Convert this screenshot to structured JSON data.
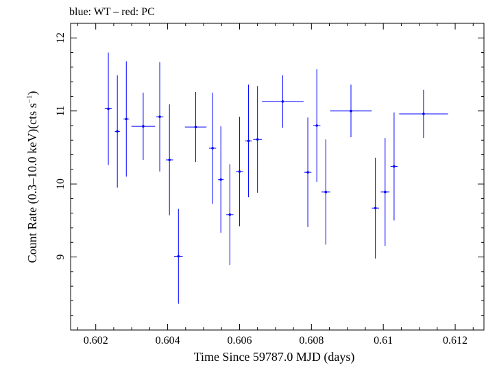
{
  "chart_data": {
    "type": "scatter",
    "title": "blue: WT – red: PC",
    "xlabel": "Time Since 59787.0 MJD (days)",
    "ylabel_main": "Count Rate (0.3–10.0 keV)(cts s",
    "ylabel_sup": "−1",
    "ylabel_end": ")",
    "xlim": [
      0.6013,
      0.6128
    ],
    "ylim": [
      8.0,
      12.2
    ],
    "xticks": [
      0.602,
      0.604,
      0.606,
      0.608,
      0.61,
      0.612
    ],
    "xtick_labels": [
      "0.602",
      "0.604",
      "0.606",
      "0.608",
      "0.61",
      "0.612"
    ],
    "yticks": [
      9,
      10,
      11,
      12
    ],
    "ytick_labels": [
      "9",
      "10",
      "11",
      "12"
    ],
    "series": [
      {
        "color": "#0000ff",
        "points": [
          {
            "x": 0.60235,
            "y": 11.03,
            "xerr": 0.0001,
            "yerr": 0.77
          },
          {
            "x": 0.6026,
            "y": 10.72,
            "xerr": 7e-05,
            "yerr": 0.77
          },
          {
            "x": 0.60285,
            "y": 10.89,
            "xerr": 8e-05,
            "yerr": 0.79
          },
          {
            "x": 0.60332,
            "y": 10.79,
            "xerr": 0.00033,
            "yerr": 0.46
          },
          {
            "x": 0.60378,
            "y": 10.92,
            "xerr": 0.0001,
            "yerr": 0.75
          },
          {
            "x": 0.60405,
            "y": 10.33,
            "xerr": 0.0001,
            "yerr": 0.76
          },
          {
            "x": 0.6043,
            "y": 9.01,
            "xerr": 0.00012,
            "yerr": 0.65
          },
          {
            "x": 0.60478,
            "y": 10.78,
            "xerr": 0.0003,
            "yerr": 0.48
          },
          {
            "x": 0.60525,
            "y": 10.49,
            "xerr": 0.0001,
            "yerr": 0.76
          },
          {
            "x": 0.60548,
            "y": 10.06,
            "xerr": 8e-05,
            "yerr": 0.73
          },
          {
            "x": 0.60573,
            "y": 9.58,
            "xerr": 0.0001,
            "yerr": 0.69
          },
          {
            "x": 0.606,
            "y": 10.17,
            "xerr": 0.0001,
            "yerr": 0.75
          },
          {
            "x": 0.60625,
            "y": 10.59,
            "xerr": 0.0001,
            "yerr": 0.77
          },
          {
            "x": 0.6065,
            "y": 10.61,
            "xerr": 0.00012,
            "yerr": 0.73
          },
          {
            "x": 0.6072,
            "y": 11.13,
            "xerr": 0.00058,
            "yerr": 0.36
          },
          {
            "x": 0.6079,
            "y": 10.16,
            "xerr": 0.0001,
            "yerr": 0.75
          },
          {
            "x": 0.60815,
            "y": 10.8,
            "xerr": 0.0001,
            "yerr": 0.77
          },
          {
            "x": 0.6084,
            "y": 9.89,
            "xerr": 0.00012,
            "yerr": 0.72
          },
          {
            "x": 0.6091,
            "y": 11.0,
            "xerr": 0.00058,
            "yerr": 0.36
          },
          {
            "x": 0.60978,
            "y": 9.67,
            "xerr": 0.0001,
            "yerr": 0.69
          },
          {
            "x": 0.61005,
            "y": 9.89,
            "xerr": 0.00012,
            "yerr": 0.74
          },
          {
            "x": 0.6103,
            "y": 10.24,
            "xerr": 0.0001,
            "yerr": 0.74
          },
          {
            "x": 0.61112,
            "y": 10.96,
            "xerr": 0.00068,
            "yerr": 0.33
          }
        ]
      }
    ]
  }
}
